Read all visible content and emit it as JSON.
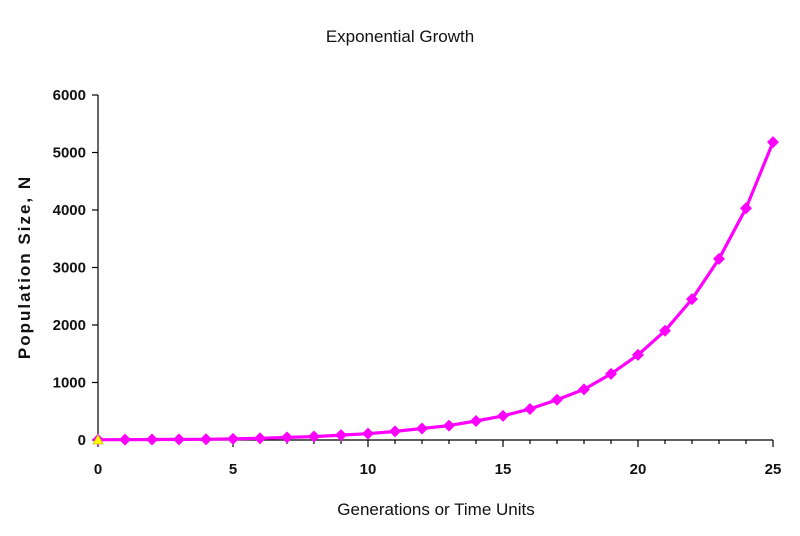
{
  "chart_data": {
    "type": "line",
    "title": "Exponential Growth",
    "xlabel": "Generations or Time Units",
    "ylabel": "Population Size, N",
    "xlim": [
      0,
      25
    ],
    "ylim": [
      0,
      6000
    ],
    "x_ticks": [
      "0",
      "5",
      "10",
      "15",
      "20",
      "25"
    ],
    "y_ticks": [
      "0",
      "1000",
      "2000",
      "3000",
      "4000",
      "5000",
      "6000"
    ],
    "grid": false,
    "legend": "none",
    "series": [
      {
        "color": "#ff00ff",
        "marker": "diamond",
        "x": [
          0,
          1,
          2,
          3,
          4,
          5,
          6,
          7,
          8,
          9,
          10,
          11,
          12,
          13,
          14,
          15,
          16,
          17,
          18,
          19,
          20,
          21,
          22,
          23,
          24,
          25
        ],
        "y": [
          5,
          6,
          8,
          10,
          13,
          20,
          30,
          45,
          60,
          85,
          110,
          150,
          200,
          250,
          330,
          420,
          540,
          700,
          880,
          1150,
          1480,
          1900,
          2450,
          3150,
          4030,
          5180
        ]
      }
    ],
    "start_marker": {
      "x": 0,
      "y": 0,
      "color": "#ffff00",
      "shape": "triangle"
    }
  }
}
